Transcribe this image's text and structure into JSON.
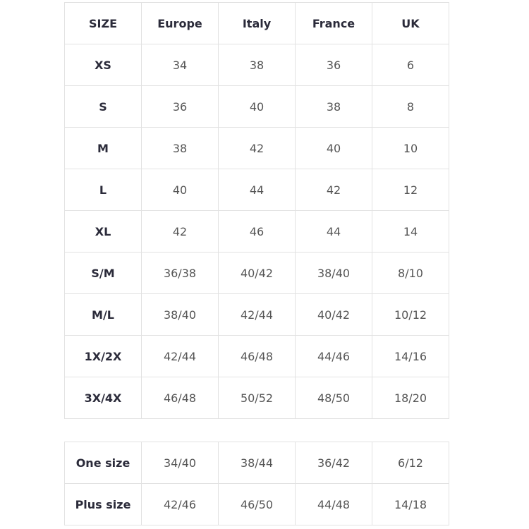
{
  "header": [
    "SIZE",
    "Europe",
    "Italy",
    "France",
    "UK"
  ],
  "rows": [
    [
      "XS",
      "34",
      "38",
      "36",
      "6"
    ],
    [
      "S",
      "36",
      "40",
      "38",
      "8"
    ],
    [
      "M",
      "38",
      "42",
      "40",
      "10"
    ],
    [
      "L",
      "40",
      "44",
      "42",
      "12"
    ],
    [
      "XL",
      "42",
      "46",
      "44",
      "14"
    ],
    [
      "S/M",
      "36/38",
      "40/42",
      "38/40",
      "8/10"
    ],
    [
      "M/L",
      "38/40",
      "42/44",
      "40/42",
      "10/12"
    ],
    [
      "1X/2X",
      "42/44",
      "46/48",
      "44/46",
      "14/16"
    ],
    [
      "3X/4X",
      "46/48",
      "50/52",
      "48/50",
      "18/20"
    ]
  ],
  "extra_rows": [
    [
      "One size",
      "34/40",
      "38/44",
      "36/42",
      "6/12"
    ],
    [
      "Plus size",
      "42/46",
      "46/50",
      "44/48",
      "14/18"
    ]
  ]
}
